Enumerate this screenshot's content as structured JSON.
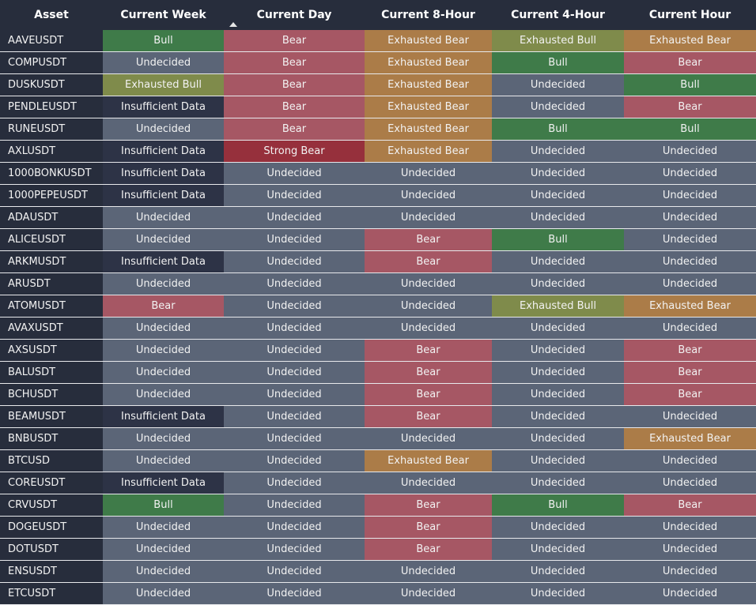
{
  "colors": {
    "Bull": "#3f7b49",
    "Bear": "#a65764",
    "Exhausted Bear": "#ab7c48",
    "Exhausted Bull": "#7f8b4b",
    "Undecided": "#5b6577",
    "Insufficient Data": "#2d3346",
    "Strong Bear": "#96303c"
  },
  "columns": [
    "Asset",
    "Current Week",
    "Current Day",
    "Current 8-Hour",
    "Current 4-Hour",
    "Current Hour"
  ],
  "sort_column": "Current Day",
  "rows": [
    [
      "AAVEUSDT",
      "Bull",
      "Bear",
      "Exhausted Bear",
      "Exhausted Bull",
      "Exhausted Bear"
    ],
    [
      "COMPUSDT",
      "Undecided",
      "Bear",
      "Exhausted Bear",
      "Bull",
      "Bear"
    ],
    [
      "DUSKUSDT",
      "Exhausted Bull",
      "Bear",
      "Exhausted Bear",
      "Undecided",
      "Bull"
    ],
    [
      "PENDLEUSDT",
      "Insufficient Data",
      "Bear",
      "Exhausted Bear",
      "Undecided",
      "Bear"
    ],
    [
      "RUNEUSDT",
      "Undecided",
      "Bear",
      "Exhausted Bear",
      "Bull",
      "Bull"
    ],
    [
      "AXLUSDT",
      "Insufficient Data",
      "Strong Bear",
      "Exhausted Bear",
      "Undecided",
      "Undecided"
    ],
    [
      "1000BONKUSDT",
      "Insufficient Data",
      "Undecided",
      "Undecided",
      "Undecided",
      "Undecided"
    ],
    [
      "1000PEPEUSDT",
      "Insufficient Data",
      "Undecided",
      "Undecided",
      "Undecided",
      "Undecided"
    ],
    [
      "ADAUSDT",
      "Undecided",
      "Undecided",
      "Undecided",
      "Undecided",
      "Undecided"
    ],
    [
      "ALICEUSDT",
      "Undecided",
      "Undecided",
      "Bear",
      "Bull",
      "Undecided"
    ],
    [
      "ARKMUSDT",
      "Insufficient Data",
      "Undecided",
      "Bear",
      "Undecided",
      "Undecided"
    ],
    [
      "ARUSDT",
      "Undecided",
      "Undecided",
      "Undecided",
      "Undecided",
      "Undecided"
    ],
    [
      "ATOMUSDT",
      "Bear",
      "Undecided",
      "Undecided",
      "Exhausted Bull",
      "Exhausted Bear"
    ],
    [
      "AVAXUSDT",
      "Undecided",
      "Undecided",
      "Undecided",
      "Undecided",
      "Undecided"
    ],
    [
      "AXSUSDT",
      "Undecided",
      "Undecided",
      "Bear",
      "Undecided",
      "Bear"
    ],
    [
      "BALUSDT",
      "Undecided",
      "Undecided",
      "Bear",
      "Undecided",
      "Bear"
    ],
    [
      "BCHUSDT",
      "Undecided",
      "Undecided",
      "Bear",
      "Undecided",
      "Bear"
    ],
    [
      "BEAMUSDT",
      "Insufficient Data",
      "Undecided",
      "Bear",
      "Undecided",
      "Undecided"
    ],
    [
      "BNBUSDT",
      "Undecided",
      "Undecided",
      "Undecided",
      "Undecided",
      "Exhausted Bear"
    ],
    [
      "BTCUSD",
      "Undecided",
      "Undecided",
      "Exhausted Bear",
      "Undecided",
      "Undecided"
    ],
    [
      "COREUSDT",
      "Insufficient Data",
      "Undecided",
      "Undecided",
      "Undecided",
      "Undecided"
    ],
    [
      "CRVUSDT",
      "Bull",
      "Undecided",
      "Bear",
      "Bull",
      "Bear"
    ],
    [
      "DOGEUSDT",
      "Undecided",
      "Undecided",
      "Bear",
      "Undecided",
      "Undecided"
    ],
    [
      "DOTUSDT",
      "Undecided",
      "Undecided",
      "Bear",
      "Undecided",
      "Undecided"
    ],
    [
      "ENSUSDT",
      "Undecided",
      "Undecided",
      "Undecided",
      "Undecided",
      "Undecided"
    ],
    [
      "ETCUSDT",
      "Undecided",
      "Undecided",
      "Undecided",
      "Undecided",
      "Undecided"
    ]
  ]
}
